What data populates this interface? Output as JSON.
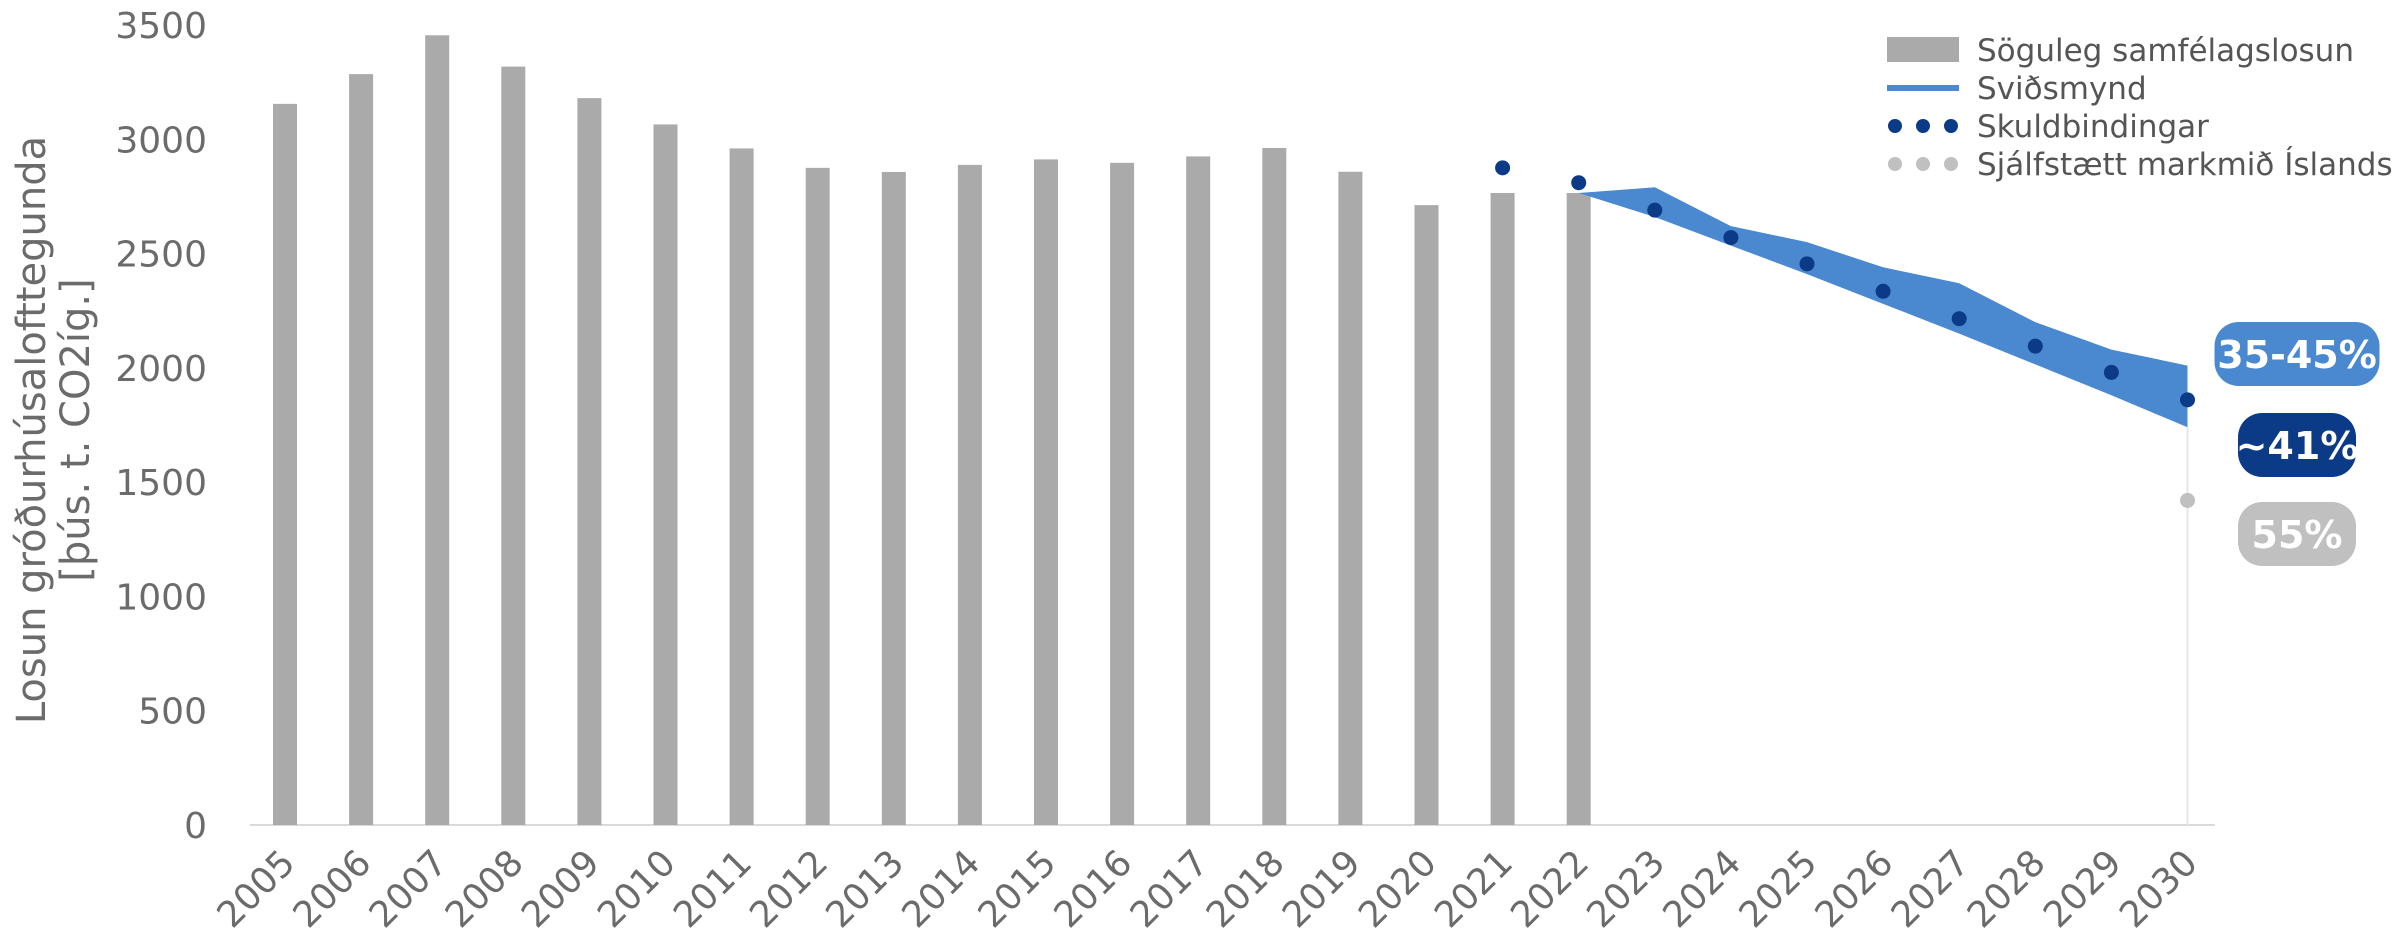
{
  "chart_data": {
    "type": "bar",
    "ylabel_lines": [
      "Losun gróðurhúsalofttegunda",
      "[þús. t. CO2íg.]"
    ],
    "ylim": [
      0,
      3500
    ],
    "yticks": [
      0,
      500,
      1000,
      1500,
      2000,
      2500,
      3000,
      3500
    ],
    "categories": [
      "2005",
      "2006",
      "2007",
      "2008",
      "2009",
      "2010",
      "2011",
      "2012",
      "2013",
      "2014",
      "2015",
      "2016",
      "2017",
      "2018",
      "2019",
      "2020",
      "2021",
      "2022",
      "2023",
      "2024",
      "2025",
      "2026",
      "2027",
      "2028",
      "2029",
      "2030"
    ],
    "grid": false,
    "legend_position": "top-right",
    "series": [
      {
        "name": "Söguleg samfélagslosun",
        "kind": "bar",
        "color": "#aaaaaa",
        "x": [
          "2005",
          "2006",
          "2007",
          "2008",
          "2009",
          "2010",
          "2011",
          "2012",
          "2013",
          "2014",
          "2015",
          "2016",
          "2017",
          "2018",
          "2019",
          "2020",
          "2021",
          "2022"
        ],
        "values": [
          3155,
          3285,
          3455,
          3318,
          3180,
          3065,
          2960,
          2875,
          2857,
          2888,
          2912,
          2897,
          2925,
          2962,
          2858,
          2712,
          2765,
          2765
        ]
      },
      {
        "name": "Sviðsmynd",
        "kind": "band",
        "color": "#4a89d0",
        "x": [
          "2022",
          "2023",
          "2024",
          "2025",
          "2026",
          "2027",
          "2028",
          "2029",
          "2030"
        ],
        "upper": [
          2765,
          2790,
          2620,
          2550,
          2440,
          2370,
          2200,
          2080,
          2010
        ],
        "lower": [
          2765,
          2660,
          2535,
          2410,
          2280,
          2150,
          2015,
          1880,
          1740
        ]
      },
      {
        "name": "Skuldbindingar",
        "kind": "scatter",
        "color": "#0b3a86",
        "x": [
          "2021",
          "2022",
          "2023",
          "2024",
          "2025",
          "2026",
          "2027",
          "2028",
          "2029",
          "2030"
        ],
        "values": [
          2875,
          2810,
          2690,
          2570,
          2455,
          2335,
          2215,
          2095,
          1980,
          1860
        ]
      },
      {
        "name": "Sjálfstætt markmið Íslands",
        "kind": "scatter",
        "color": "#c0c0c0",
        "x": [
          "2030"
        ],
        "values": [
          1420
        ]
      }
    ],
    "badges": [
      {
        "text": "35-45%",
        "color": "#4a89d0"
      },
      {
        "text": "~41%",
        "color": "#0b3a86"
      },
      {
        "text": "55%",
        "color": "#c0c0c0"
      }
    ]
  }
}
